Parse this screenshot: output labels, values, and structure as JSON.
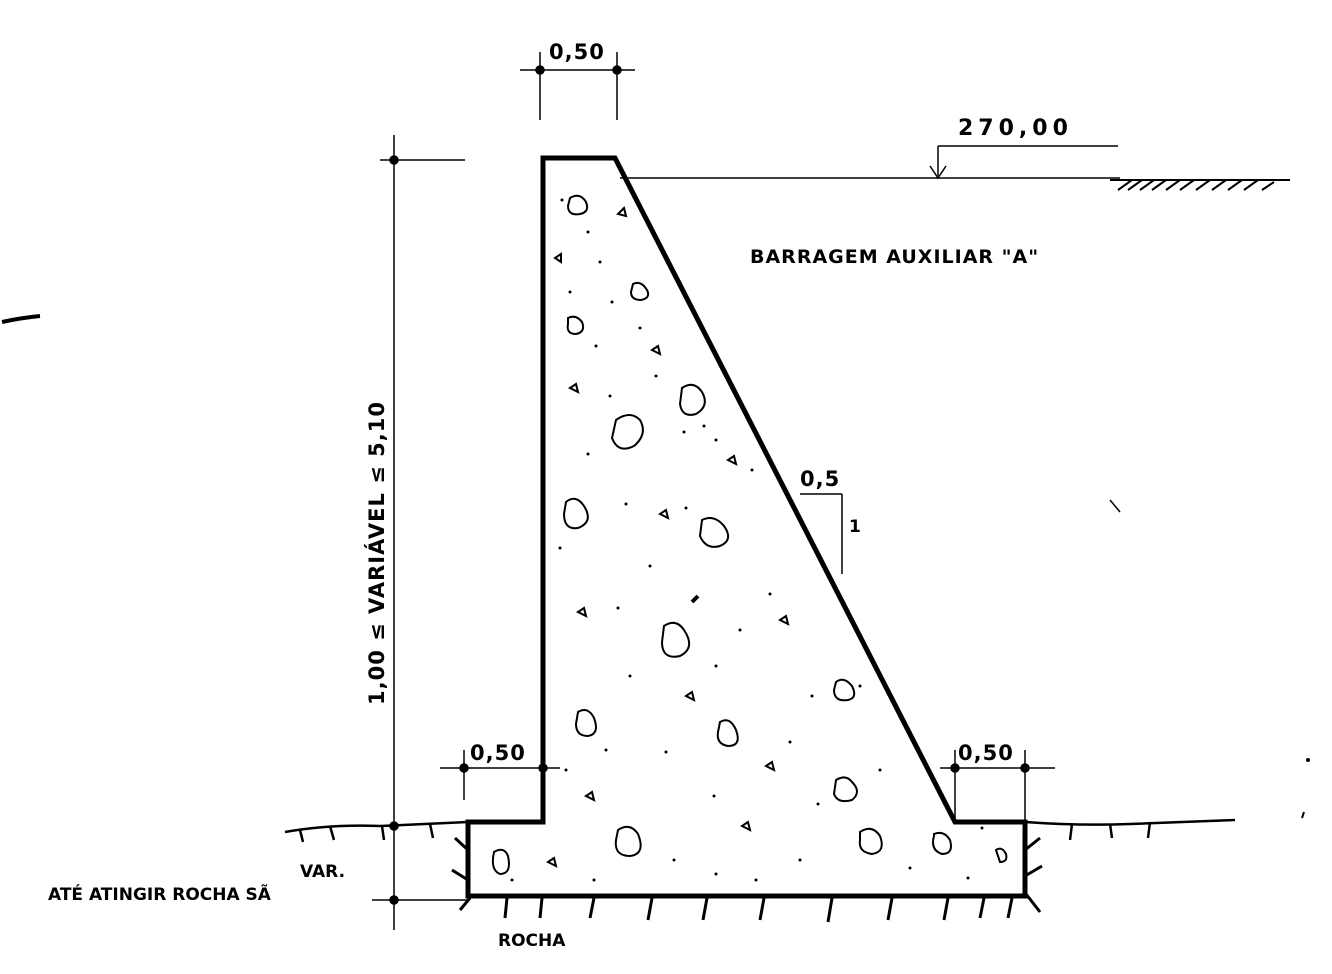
{
  "drawing": {
    "crest_width": "0,50",
    "crest_elevation": "270,00",
    "structure_name": "BARRAGEM  AUXILIAR \"A\"",
    "slope_horizontal": "0,5",
    "slope_vertical": "1",
    "height_label": "1,00 ≤ VARIÁVEL ≤ 5,10",
    "heel_width": "0,50",
    "toe_width": "0,50",
    "foundation_note_line1": "VAR.",
    "foundation_note_line2": "ATÉ  ATINGIR  ROCHA SÃ",
    "foundation_material": "ROCHA"
  }
}
